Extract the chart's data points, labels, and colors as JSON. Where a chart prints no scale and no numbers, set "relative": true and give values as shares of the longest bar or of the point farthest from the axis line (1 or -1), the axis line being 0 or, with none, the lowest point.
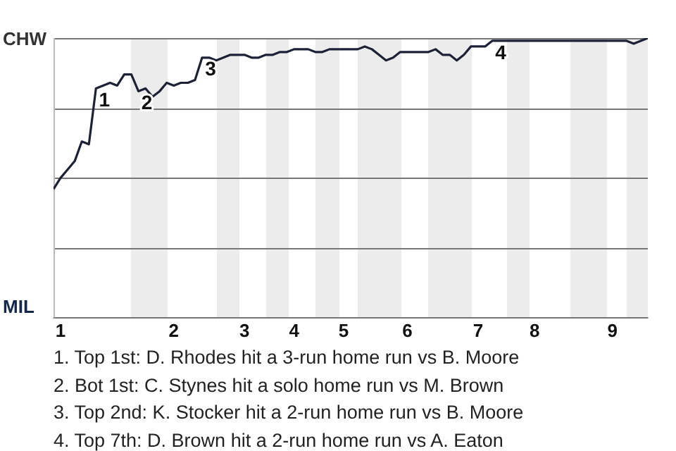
{
  "chart_data": {
    "type": "line",
    "relative": true,
    "categories": [
      null,
      "1",
      null,
      null,
      null,
      null,
      null,
      null,
      null,
      null,
      null,
      null,
      null,
      null,
      null,
      null,
      null,
      "2",
      null,
      null,
      null,
      null,
      null,
      null,
      null,
      null,
      null,
      "3",
      null,
      null,
      null,
      null,
      null,
      null,
      "4",
      null,
      null,
      null,
      null,
      null,
      null,
      "5",
      null,
      null,
      null,
      null,
      null,
      null,
      null,
      null,
      "6",
      null,
      null,
      null,
      null,
      null,
      null,
      null,
      null,
      null,
      "7",
      null,
      null,
      null,
      null,
      null,
      null,
      null,
      "8",
      null,
      null,
      null,
      null,
      null,
      null,
      null,
      null,
      null,
      null,
      "9",
      null,
      null,
      null,
      null,
      null
    ],
    "series": [
      {
        "color": "#1c2136",
        "values": [
          0.46,
          0.5,
          0.53,
          0.56,
          0.63,
          0.62,
          0.82,
          0.83,
          0.84,
          0.83,
          0.87,
          0.87,
          0.81,
          0.82,
          0.79,
          0.81,
          0.84,
          0.83,
          0.84,
          0.84,
          0.85,
          0.93,
          0.93,
          0.92,
          0.93,
          0.94,
          0.94,
          0.94,
          0.93,
          0.93,
          0.94,
          0.94,
          0.95,
          0.95,
          0.96,
          0.96,
          0.96,
          0.95,
          0.95,
          0.96,
          0.96,
          0.96,
          0.96,
          0.96,
          0.97,
          0.96,
          0.94,
          0.92,
          0.93,
          0.95,
          0.95,
          0.95,
          0.95,
          0.95,
          0.96,
          0.94,
          0.94,
          0.92,
          0.94,
          0.97,
          0.97,
          0.97,
          0.99,
          0.99,
          0.99,
          0.99,
          0.99,
          0.99,
          0.99,
          0.99,
          0.99,
          0.99,
          0.99,
          0.99,
          0.99,
          0.99,
          0.99,
          0.99,
          0.99,
          0.99,
          0.99,
          0.99,
          0.98,
          0.99,
          1.0
        ]
      }
    ],
    "grid": "y",
    "marker": "none",
    "line_style": "solid",
    "legend": false,
    "annotations": [
      {
        "text": "1",
        "y": 0.82
      },
      {
        "text": "2",
        "y": 0.81
      },
      {
        "text": "3",
        "y": 0.93
      },
      {
        "text": "4",
        "y": 0.99
      },
      "CHW",
      "MIL",
      "1. Top 1st: D. Rhodes hit a 3-run home run vs B. Moore",
      "2. Bot 1st: C. Stynes hit a solo home run vs M. Brown",
      "3. Top 2nd: K. Stocker hit a 2-run home run vs B. Moore",
      "4. Top 7th: D. Brown hit a 2-run home run vs A. Eaton"
    ]
  }
}
